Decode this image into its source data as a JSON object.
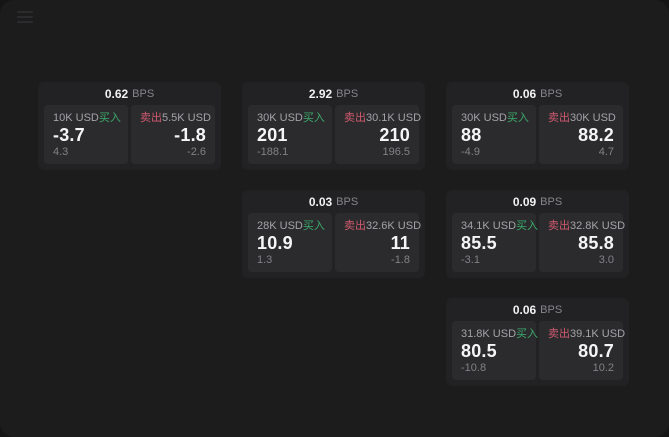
{
  "labels": {
    "bps": "BPS",
    "buy": "买入",
    "sell": "卖出"
  },
  "colors": {
    "buy_green": "#3cab6d",
    "sell_red": "#cf5a6e",
    "window_bg": "#1c1c1d",
    "card_bg": "#222224",
    "panel_bg": "#2b2b2d"
  },
  "cards": [
    {
      "bps": "0.62",
      "buy": {
        "amount": "10K USD",
        "value": "-3.7",
        "delta": "4.3"
      },
      "sell": {
        "amount": "5.5K USD",
        "value": "-1.8",
        "delta": "-2.6"
      }
    },
    {
      "bps": "2.92",
      "buy": {
        "amount": "30K USD",
        "value": "201",
        "delta": "-188.1"
      },
      "sell": {
        "amount": "30.1K USD",
        "value": "210",
        "delta": "196.5"
      }
    },
    {
      "bps": "0.06",
      "buy": {
        "amount": "30K USD",
        "value": "88",
        "delta": "-4.9"
      },
      "sell": {
        "amount": "30K USD",
        "value": "88.2",
        "delta": "4.7"
      }
    },
    {
      "bps": "0.03",
      "buy": {
        "amount": "28K USD",
        "value": "10.9",
        "delta": "1.3"
      },
      "sell": {
        "amount": "32.6K USD",
        "value": "11",
        "delta": "-1.8"
      }
    },
    {
      "bps": "0.09",
      "buy": {
        "amount": "34.1K USD",
        "value": "85.5",
        "delta": "-3.1"
      },
      "sell": {
        "amount": "32.8K USD",
        "value": "85.8",
        "delta": "3.0"
      }
    },
    {
      "bps": "0.06",
      "buy": {
        "amount": "31.8K USD",
        "value": "80.5",
        "delta": "-10.8"
      },
      "sell": {
        "amount": "39.1K USD",
        "value": "80.7",
        "delta": "10.2"
      }
    }
  ]
}
